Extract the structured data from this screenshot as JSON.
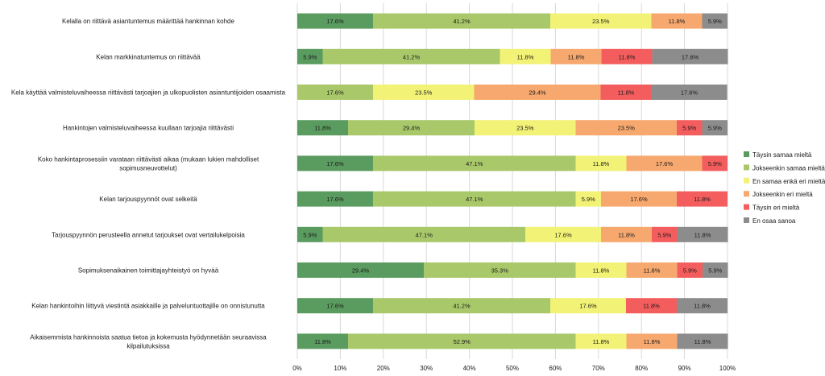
{
  "chart_data": {
    "type": "bar",
    "orientation": "horizontal",
    "stacked": "percent",
    "xlim": [
      0,
      100
    ],
    "x_ticks": [
      "0%",
      "10%",
      "20%",
      "30%",
      "40%",
      "50%",
      "60%",
      "70%",
      "80%",
      "90%",
      "100%"
    ],
    "grid": true,
    "legend_position": "right",
    "categories": [
      [
        "Kelalla on riittävä asiantuntemus määrittää hankinnan kohde"
      ],
      [
        "Kelan markkinatuntemus on riittävää"
      ],
      [
        "Kela käyttää valmisteluvaiheessa riittävästi tarjoajien ja ulkopuolisten asiantuntijoiden osaamista"
      ],
      [
        "Hankintojen valmisteluvaiheessa kuullaan tarjoajia riittävästi"
      ],
      [
        "Koko hankintaprosessiin varataan riittävästi aikaa (mukaan lukien mahdolliset",
        "sopimusneuvottelut)"
      ],
      [
        "Kelan tarjouspyynnöt ovat selkeitä"
      ],
      [
        "Tarjouspyynnön perusteella annetut tarjoukset ovat vertailukelpoisia"
      ],
      [
        "Sopimuksenaikainen toimittajayhteistyö on hyvää"
      ],
      [
        "Kelan hankintoihin liittyvä viestintä asiakkaille ja palveluntuottajille on onnistunutta"
      ],
      [
        "Aikaisemmista hankinnoista saatua tietoa ja kokemusta hyödynnetään seuraavissa",
        "kilpailutuksissa"
      ]
    ],
    "series": [
      {
        "name": "Täysin samaa mieltä",
        "color": "#5a9b5f",
        "values": [
          17.6,
          5.9,
          0,
          11.8,
          17.6,
          17.6,
          5.9,
          29.4,
          17.6,
          11.8
        ],
        "labels": [
          "17.6%",
          "5.9%",
          "",
          "11.8%",
          "17.6%",
          "17.6%",
          "5.9%",
          "29.4%",
          "17.6%",
          "11.8%"
        ]
      },
      {
        "name": "Jokseenkin samaa mieltä",
        "color": "#a9c86a",
        "values": [
          41.2,
          41.2,
          17.6,
          29.4,
          47.1,
          47.1,
          47.1,
          35.3,
          41.2,
          52.9
        ],
        "labels": [
          "41.2%",
          "41.2%",
          "17.6%",
          "29.4%",
          "47.1%",
          "47.1%",
          "47.1%",
          "35.3%",
          "41.2%",
          "52.9%"
        ]
      },
      {
        "name": "En samaa enkä eri mieltä",
        "color": "#f2f277",
        "values": [
          23.5,
          11.8,
          23.5,
          23.5,
          11.8,
          5.9,
          17.6,
          11.8,
          17.6,
          11.8
        ],
        "labels": [
          "23.5%",
          "11.8%",
          "23.5%",
          "23.5%",
          "11.8%",
          "5.9%",
          "17.6%",
          "11.8%",
          "17.6%",
          "11.8%"
        ]
      },
      {
        "name": "Jokseenkin eri mieltä",
        "color": "#f6a86e",
        "values": [
          11.8,
          11.8,
          29.4,
          23.5,
          17.6,
          17.6,
          11.8,
          11.8,
          0,
          11.8
        ],
        "labels": [
          "11.8%",
          "11.8%",
          "29.4%",
          "23.5%",
          "17.6%",
          "17.6%",
          "11.8%",
          "11.8%",
          "",
          "11.8%"
        ]
      },
      {
        "name": "Täysin eri mieltä",
        "color": "#f45d5d",
        "values": [
          0,
          11.8,
          11.8,
          5.9,
          5.9,
          11.8,
          5.9,
          5.9,
          11.8,
          0
        ],
        "labels": [
          "",
          "11.8%",
          "11.8%",
          "5.9%",
          "5.9%",
          "11.8%",
          "5.9%",
          "5.9%",
          "11.8%",
          ""
        ]
      },
      {
        "name": "En osaa sanoa",
        "color": "#8c8c8c",
        "values": [
          5.9,
          17.6,
          17.6,
          5.9,
          0,
          0,
          11.8,
          5.9,
          11.8,
          11.8
        ],
        "labels": [
          "5.9%",
          "17.6%",
          "17.6%",
          "5.9%",
          "",
          "",
          "11.8%",
          "5.9%",
          "11.8%",
          "11.8%"
        ]
      }
    ]
  }
}
